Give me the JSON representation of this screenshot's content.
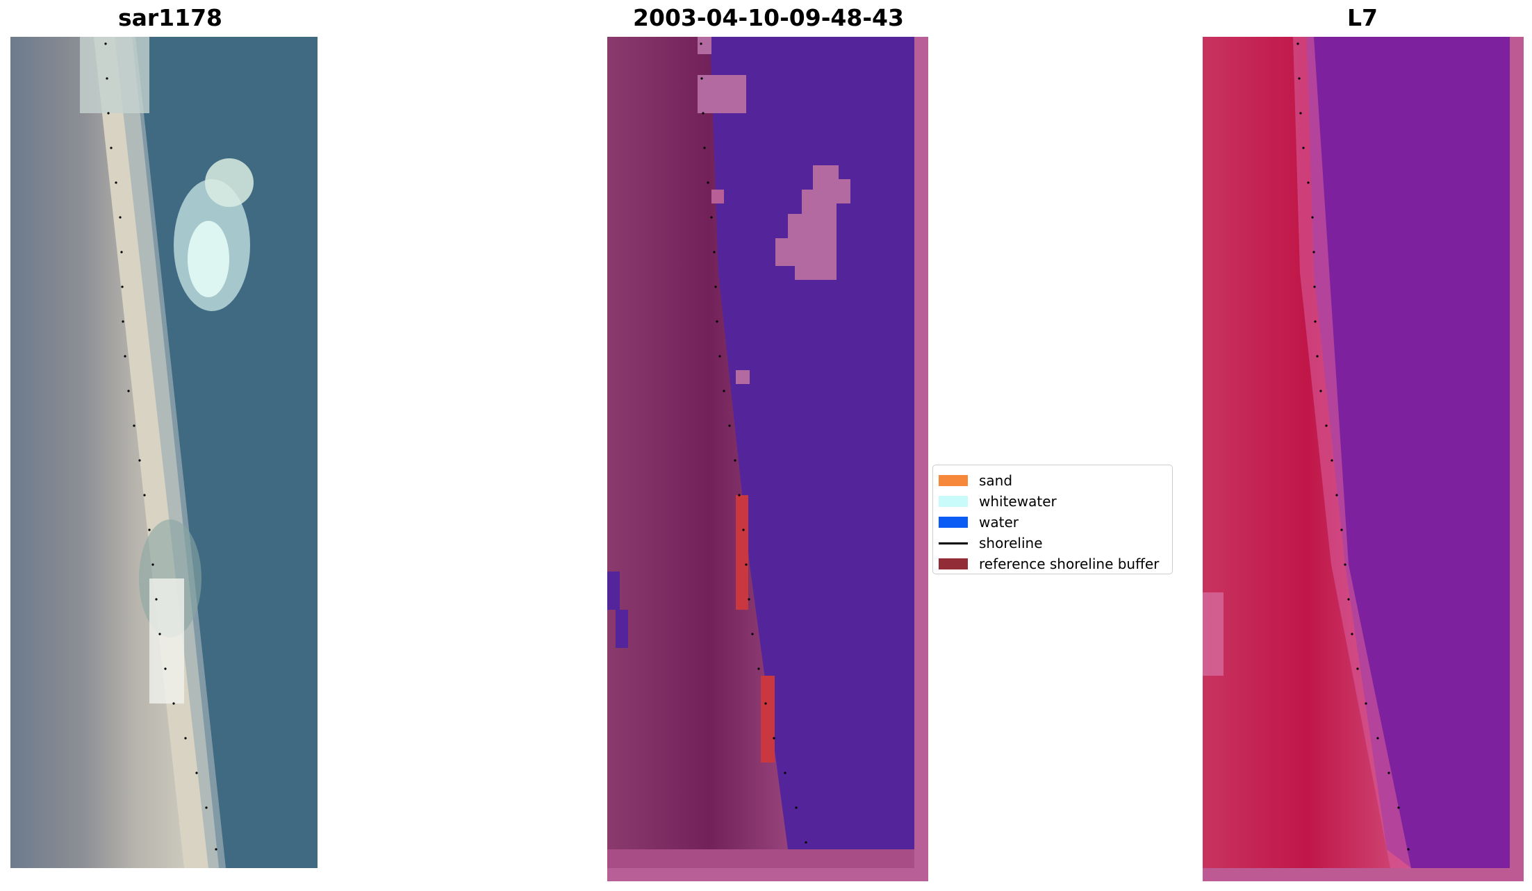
{
  "panels": [
    {
      "title": "sar1178"
    },
    {
      "title": "2003-04-10-09-48-43"
    },
    {
      "title": "L7"
    }
  ],
  "legend": {
    "items": [
      {
        "label": "sand",
        "type": "patch",
        "color": "#f5883a"
      },
      {
        "label": "whitewater",
        "type": "patch",
        "color": "#c9fbfb"
      },
      {
        "label": "water",
        "type": "patch",
        "color": "#0a5cf5"
      },
      {
        "label": "shoreline",
        "type": "line",
        "color": "#000000"
      },
      {
        "label": "reference shoreline buffer",
        "type": "patch",
        "color": "#922d38"
      }
    ]
  },
  "colors": {
    "rgb_water": "#3f6f86",
    "rgb_sand": "#cfc9b6",
    "class_water": "#53249a",
    "class_land": "#7c2a5e",
    "class_light": "#b26aa0",
    "class_buffer_red": "#c8383e",
    "nir_land": "#c21a4c",
    "nir_water": "#7a1fa0"
  }
}
